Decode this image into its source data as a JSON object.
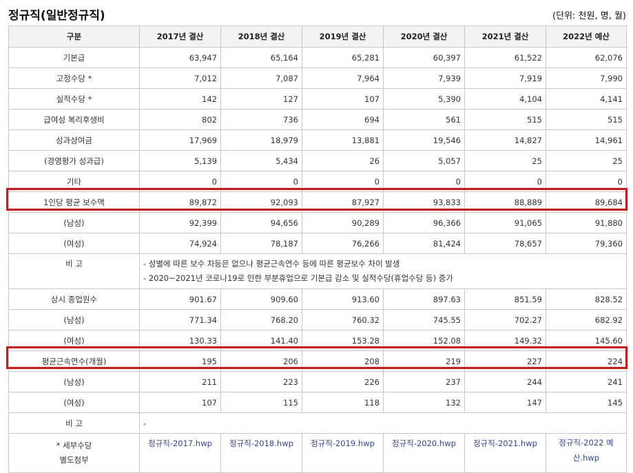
{
  "header": {
    "title": "정규직(일반정규직)",
    "unit": "(단위: 천원, 명, 월)"
  },
  "table": {
    "columns": [
      "구분",
      "2017년 결산",
      "2018년 결산",
      "2019년 결산",
      "2020년 결산",
      "2021년 결산",
      "2022년 예산"
    ],
    "group1": [
      {
        "label": "기본급",
        "values": [
          "63,947",
          "65,164",
          "65,281",
          "60,397",
          "61,522",
          "62,076"
        ]
      },
      {
        "label": "고정수당 *",
        "values": [
          "7,012",
          "7,087",
          "7,964",
          "7,939",
          "7,919",
          "7,990"
        ]
      },
      {
        "label": "실적수당 *",
        "values": [
          "142",
          "127",
          "107",
          "5,390",
          "4,104",
          "4,141"
        ]
      },
      {
        "label": "급여성 복리후생비",
        "values": [
          "802",
          "736",
          "694",
          "561",
          "515",
          "515"
        ]
      },
      {
        "label": "성과상여금",
        "values": [
          "17,969",
          "18,979",
          "13,881",
          "19,546",
          "14,827",
          "14,961"
        ]
      },
      {
        "label": "(경영평가 성과급)",
        "values": [
          "5,139",
          "5,434",
          "26",
          "5,057",
          "25",
          "25"
        ]
      },
      {
        "label": "기타",
        "values": [
          "0",
          "0",
          "0",
          "0",
          "0",
          "0"
        ]
      },
      {
        "label": "1인당 평균 보수액",
        "values": [
          "89,872",
          "92,093",
          "87,927",
          "93,833",
          "88,889",
          "89,684"
        ]
      },
      {
        "label": "(남성)",
        "values": [
          "92,399",
          "94,656",
          "90,289",
          "96,366",
          "91,065",
          "91,880"
        ]
      },
      {
        "label": "(여성)",
        "values": [
          "74,924",
          "78,187",
          "76,266",
          "81,424",
          "78,657",
          "79,360"
        ]
      }
    ],
    "note1": {
      "label": "비 고",
      "line1": "- 성별에 따른 보수 차등은 없으나 평균근속연수 등에 따른 평균보수 차이 발생",
      "line2": "- 2020~2021년 코로나19로 인한 부분휴업으로 기본급 감소 및 실적수당(휴업수당 등) 증가"
    },
    "group2": [
      {
        "label": "상시 종업원수",
        "values": [
          "901.67",
          "909.60",
          "913.60",
          "897.63",
          "851.59",
          "828.52"
        ]
      },
      {
        "label": "(남성)",
        "values": [
          "771.34",
          "768.20",
          "760.32",
          "745.55",
          "702.27",
          "682.92"
        ]
      },
      {
        "label": "(여성)",
        "values": [
          "130.33",
          "141.40",
          "153.28",
          "152.08",
          "149.32",
          "145.60"
        ]
      },
      {
        "label": "평균근속연수(개월)",
        "values": [
          "195",
          "206",
          "208",
          "219",
          "227",
          "224"
        ]
      },
      {
        "label": "(남성)",
        "values": [
          "211",
          "223",
          "226",
          "237",
          "244",
          "241"
        ]
      },
      {
        "label": "(여성)",
        "values": [
          "107",
          "115",
          "118",
          "132",
          "147",
          "145"
        ]
      }
    ],
    "note2": {
      "label": "비 고",
      "text": "-"
    },
    "attachments": {
      "label_line1": "* 세부수당",
      "label_line2": "별도첨부",
      "files": [
        "정규직-2017.hwp",
        "정규직-2018.hwp",
        "정규직-2019.hwp",
        "정규직-2020.hwp",
        "정규직-2021.hwp",
        "정규직-2022 예산.hwp"
      ]
    }
  },
  "highlights": {
    "color": "#e01010",
    "rows": [
      "1인당 평균 보수액",
      "평균근속연수(개월)"
    ]
  }
}
